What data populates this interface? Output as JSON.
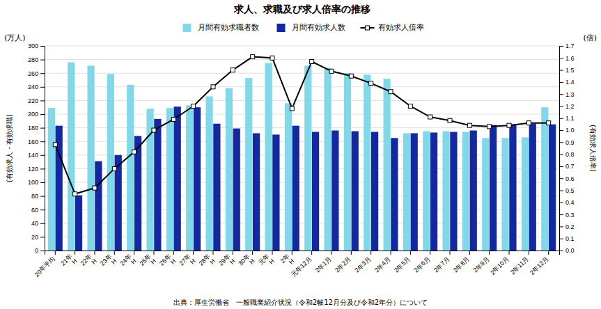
{
  "chart_data": {
    "type": "bar",
    "title": "求人、求職及び求人倍率の推移",
    "source": "出典：厚生労働省　一般職業紹介状況（令和2帔12月分及び令和2年分）について",
    "ylabel": "(有効求人・有効求職)",
    "y2label": "(有効求人倍率)",
    "y_unit": "(万人)",
    "y2_unit": "(倍)",
    "categories": [
      "20年平均",
      "21年\nH",
      "22年\nH",
      "23年\nH",
      "24年\nH",
      "25年\nH",
      "26年\nH",
      "27年\nH",
      "28年\nH",
      "29年\nH",
      "30年\nH",
      "元年\nH",
      "2年\nH",
      "元年12月",
      "2年1月",
      "2年2月",
      "2年3月",
      "2年4月",
      "2年5月",
      "2年6月",
      "2年7月",
      "2年8月",
      "2年9月",
      "2年10月",
      "2年11月",
      "2年12月"
    ],
    "series": [
      {
        "name": "月間有効求職者数",
        "color": "#80D8E8",
        "values": [
          209,
          276,
          271,
          259,
          243,
          208,
          209,
          213,
          226,
          238,
          253,
          275,
          216,
          271,
          268,
          260,
          258,
          252,
          172,
          175,
          175,
          174,
          165,
          165,
          166,
          210
        ]
      },
      {
        "name": "月間有効求人数",
        "color": "#1428A0",
        "values": [
          183,
          81,
          131,
          140,
          168,
          193,
          211,
          210,
          186,
          179,
          172,
          170,
          183,
          174,
          176,
          175,
          174,
          165,
          172,
          173,
          174,
          176,
          184,
          185,
          186,
          185
        ]
      },
      {
        "name": "有効求人倍率",
        "type": "line",
        "axis": "y2",
        "color": "#000000",
        "marker": "square",
        "values": [
          0.88,
          0.47,
          0.52,
          0.68,
          0.82,
          1.0,
          1.09,
          1.2,
          1.36,
          1.5,
          1.61,
          1.6,
          1.18,
          1.57,
          1.49,
          1.45,
          1.39,
          1.32,
          1.2,
          1.11,
          1.08,
          1.04,
          1.03,
          1.04,
          1.06,
          1.06
        ]
      }
    ],
    "ylim": [
      0,
      300
    ],
    "yticks": [
      0,
      20,
      40,
      60,
      80,
      100,
      120,
      140,
      160,
      180,
      200,
      220,
      240,
      260,
      280,
      300
    ],
    "y2lim": [
      0.0,
      1.7
    ],
    "y2ticks": [
      {
        "value": 0.0,
        "label": "0.0"
      },
      0.1,
      0.2,
      0.3,
      0.4,
      0.5,
      0.6,
      0.7,
      0.8,
      0.9,
      {
        "value": 1.0,
        "label": "1.0"
      },
      1.1,
      1.2,
      1.3,
      1.4,
      1.5,
      1.6,
      1.7
    ],
    "grid": true,
    "legend": "top"
  }
}
